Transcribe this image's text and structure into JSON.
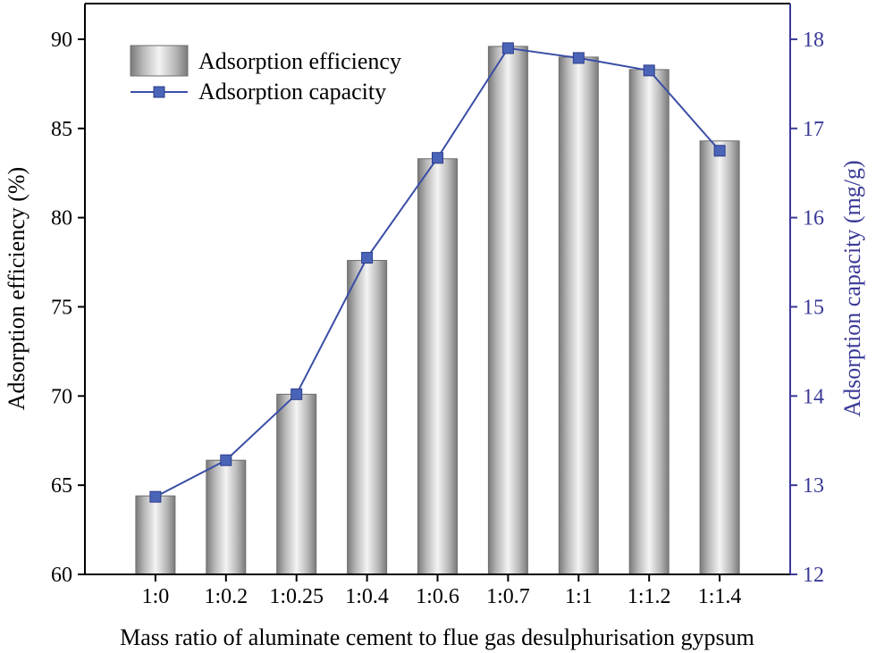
{
  "chart_data": {
    "type": "bar+line",
    "categories": [
      "1:0",
      "1:0.2",
      "1:0.25",
      "1:0.4",
      "1:0.6",
      "1:0.7",
      "1:1",
      "1:1.2",
      "1:1.4"
    ],
    "series": [
      {
        "name": "Adsorption efficiency",
        "type": "bar",
        "axis": "left",
        "values": [
          64.4,
          66.4,
          70.1,
          77.6,
          83.3,
          89.6,
          89.0,
          88.3,
          84.3
        ]
      },
      {
        "name": "Adsorption capacity",
        "type": "line",
        "axis": "right",
        "values": [
          12.87,
          13.28,
          14.02,
          15.55,
          16.67,
          17.9,
          17.79,
          17.65,
          16.75
        ]
      }
    ],
    "xlabel": "Mass ratio of aluminate cement to flue gas desulphurisation gypsum",
    "ylabel_left": "Adsorption efficiency (%)",
    "ylabel_right": "Adsorption capacity (mg/g)",
    "ylim_left": [
      60,
      92
    ],
    "ylim_right": [
      12,
      18.4
    ],
    "yticks_left": [
      60,
      65,
      70,
      75,
      80,
      85,
      90
    ],
    "yticks_right": [
      12,
      13,
      14,
      15,
      16,
      17,
      18
    ],
    "legend_position": "top-left",
    "grid": false,
    "colors": {
      "line": "#3a4ea6",
      "marker": "#4a64b8",
      "right_axis": "#3a3a98",
      "bar_edge": "#6e6e6e"
    }
  }
}
